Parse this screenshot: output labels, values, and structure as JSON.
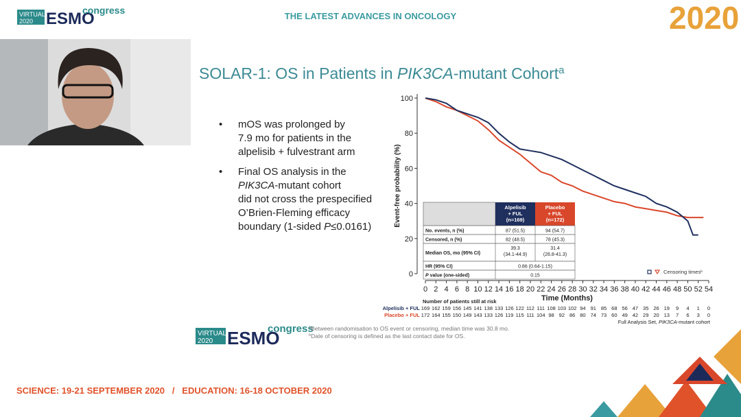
{
  "header": {
    "logo_virtual": [
      "VIRTUAL",
      "2020"
    ],
    "logo_esmo": "ESMO",
    "logo_congress": "congress",
    "tagline": "THE LATEST ADVANCES IN ONCOLOGY",
    "year": "2020"
  },
  "slide": {
    "title": [
      "SOLAR-1: OS in Patients in ",
      {
        "text": "PIK3CA",
        "italic": true
      },
      "-mutant Cohort",
      {
        "text": "a",
        "sup": true
      }
    ],
    "bullets": [
      [
        [
          "mOS was prolonged by"
        ],
        [
          "7.9 mo for patients in the"
        ],
        [
          "alpelisib + fulvestrant arm"
        ]
      ],
      [
        [
          "Final OS analysis in the"
        ],
        [
          {
            "text": "PIK3CA",
            "italic": true
          },
          "-mutant cohort"
        ],
        [
          "did not cross the prespecified"
        ],
        [
          "O’Brien-Fleming efficacy"
        ],
        [
          "boundary (1-sided ",
          {
            "text": "P",
            "italic": true
          },
          "≤0.0161)"
        ]
      ]
    ],
    "footnotes": [
      [
        {
          "text": "a",
          "sup": true
        },
        "Between randomisation to OS event or censoring, median time was 30.8 mo."
      ],
      [
        {
          "text": "b",
          "sup": true
        },
        "Date of censoring is defined as the last contact date for OS."
      ]
    ],
    "footer": "SCIENCE: 19-21 SEPTEMBER 2020   /   EDUCATION: 16-18 OCTOBER 2020"
  },
  "chart_data": {
    "type": "line",
    "ylabel": "Event-free probability (%)",
    "xlabel": "Time (Months)",
    "xlim": [
      0,
      54
    ],
    "ylim": [
      0,
      100
    ],
    "xticks": [
      0,
      2,
      4,
      6,
      8,
      10,
      12,
      14,
      16,
      18,
      20,
      22,
      24,
      26,
      28,
      30,
      32,
      34,
      36,
      38,
      40,
      42,
      44,
      46,
      48,
      50,
      52,
      54
    ],
    "yticks": [
      0,
      20,
      40,
      60,
      80,
      100
    ],
    "series": [
      {
        "name": "Alpelisib + FUL",
        "color": "#1f2f5e",
        "x": [
          0,
          2,
          4,
          6,
          8,
          10,
          12,
          14,
          16,
          18,
          20,
          22,
          24,
          26,
          28,
          30,
          32,
          34,
          36,
          38,
          40,
          42,
          44,
          46,
          48,
          50,
          51,
          52
        ],
        "values": [
          100,
          99,
          97,
          93,
          91,
          89,
          86,
          80,
          75,
          71,
          70,
          69,
          67,
          65,
          62,
          59,
          56,
          53,
          50,
          48,
          46,
          44,
          40,
          38,
          35,
          30,
          22,
          22
        ]
      },
      {
        "name": "Placebo + FUL",
        "color": "#d9472b",
        "x": [
          0,
          2,
          4,
          6,
          8,
          10,
          12,
          14,
          16,
          18,
          20,
          22,
          24,
          26,
          28,
          30,
          32,
          34,
          36,
          38,
          40,
          42,
          44,
          46,
          48,
          50,
          52,
          53
        ],
        "values": [
          100,
          98,
          95,
          93,
          90,
          87,
          82,
          76,
          72,
          68,
          63,
          58,
          56,
          52,
          50,
          47,
          45,
          43,
          41,
          40,
          38,
          37,
          36,
          35,
          33,
          32,
          32,
          32
        ]
      }
    ],
    "legend": [
      "Censoring times",
      {
        "text": "b",
        "sup": true
      }
    ],
    "table": {
      "header": [
        "",
        [
          "Alpelisib",
          "+ FUL",
          "(n=169)"
        ],
        [
          "Placebo",
          "+ FUL",
          "(n=172)"
        ]
      ],
      "rows": [
        [
          "No. events, n (%)",
          [
            "87 (51.5)"
          ],
          [
            "94 (54.7)"
          ]
        ],
        [
          "Censored, n (%)",
          [
            "82 (48.5)"
          ],
          [
            "78 (45.3)"
          ]
        ],
        [
          "Median OS, mo (95% CI)",
          [
            "39.3",
            "(34.1-44.9)"
          ],
          [
            "31.4",
            "(26.8-41.3)"
          ]
        ],
        [
          "HR (95% CI)",
          [
            "0.86 (0.64-1.15)"
          ]
        ],
        [
          [
            {
              "text": "P",
              "italic": true
            },
            " value (one-sided)"
          ],
          [
            "0.15"
          ]
        ]
      ]
    },
    "at_risk": {
      "title": "Number of patients still at risk",
      "rows": [
        {
          "name": "Alpelisib + FUL",
          "color": "#1f2f5e",
          "values": [
            169,
            162,
            159,
            156,
            145,
            141,
            138,
            133,
            126,
            122,
            112,
            111,
            108,
            103,
            102,
            94,
            91,
            85,
            68,
            56,
            47,
            35,
            26,
            19,
            9,
            4,
            1,
            0
          ]
        },
        {
          "name": "Placebo + FUL",
          "color": "#d9472b",
          "values": [
            172,
            164,
            155,
            150,
            149,
            143,
            133,
            126,
            119,
            115,
            111,
            104,
            98,
            92,
            86,
            80,
            74,
            73,
            60,
            49,
            42,
            29,
            20,
            13,
            7,
            6,
            3,
            0
          ]
        }
      ]
    },
    "note": [
      "Full Analysis Set, ",
      {
        "text": "PIK3CA",
        "italic": true
      },
      "-mutant cohort"
    ]
  }
}
